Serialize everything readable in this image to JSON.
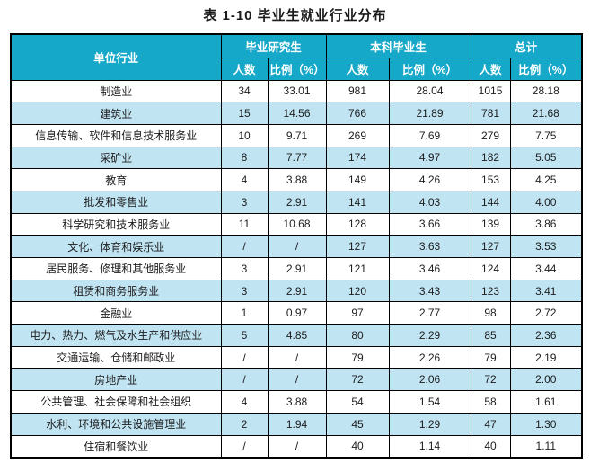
{
  "title": "表 1-10 毕业生就业行业分布",
  "colors": {
    "header_bg": "#16a8c8",
    "header_text": "#ffffff",
    "row_bg": "#ffffff",
    "row_alt_bg": "#c1e4f3",
    "border": "#000000",
    "text": "#1c1c1c"
  },
  "table": {
    "group_headers": [
      "单位行业",
      "毕业研究生",
      "本科毕业生",
      "总计"
    ],
    "sub_headers": [
      "人数",
      "比例（%）",
      "人数",
      "比例（%）",
      "人数",
      "比例（%）"
    ],
    "rows": [
      [
        "制造业",
        "34",
        "33.01",
        "981",
        "28.04",
        "1015",
        "28.18"
      ],
      [
        "建筑业",
        "15",
        "14.56",
        "766",
        "21.89",
        "781",
        "21.68"
      ],
      [
        "信息传输、软件和信息技术服务业",
        "10",
        "9.71",
        "269",
        "7.69",
        "279",
        "7.75"
      ],
      [
        "采矿业",
        "8",
        "7.77",
        "174",
        "4.97",
        "182",
        "5.05"
      ],
      [
        "教育",
        "4",
        "3.88",
        "149",
        "4.26",
        "153",
        "4.25"
      ],
      [
        "批发和零售业",
        "3",
        "2.91",
        "141",
        "4.03",
        "144",
        "4.00"
      ],
      [
        "科学研究和技术服务业",
        "11",
        "10.68",
        "128",
        "3.66",
        "139",
        "3.86"
      ],
      [
        "文化、体育和娱乐业",
        "/",
        "/",
        "127",
        "3.63",
        "127",
        "3.53"
      ],
      [
        "居民服务、修理和其他服务业",
        "3",
        "2.91",
        "121",
        "3.46",
        "124",
        "3.44"
      ],
      [
        "租赁和商务服务业",
        "3",
        "2.91",
        "120",
        "3.43",
        "123",
        "3.41"
      ],
      [
        "金融业",
        "1",
        "0.97",
        "97",
        "2.77",
        "98",
        "2.72"
      ],
      [
        "电力、热力、燃气及水生产和供应业",
        "5",
        "4.85",
        "80",
        "2.29",
        "85",
        "2.36"
      ],
      [
        "交通运输、仓储和邮政业",
        "/",
        "/",
        "79",
        "2.26",
        "79",
        "2.19"
      ],
      [
        "房地产业",
        "/",
        "/",
        "72",
        "2.06",
        "72",
        "2.00"
      ],
      [
        "公共管理、社会保障和社会组织",
        "4",
        "3.88",
        "54",
        "1.54",
        "58",
        "1.61"
      ],
      [
        "水利、环境和公共设施管理业",
        "2",
        "1.94",
        "45",
        "1.29",
        "47",
        "1.30"
      ],
      [
        "住宿和餐饮业",
        "/",
        "/",
        "40",
        "1.14",
        "40",
        "1.11"
      ]
    ]
  },
  "chart_data": {
    "type": "table",
    "title": "表 1-10 毕业生就业行业分布",
    "columns": [
      "单位行业",
      "毕业研究生-人数",
      "毕业研究生-比例（%）",
      "本科毕业生-人数",
      "本科毕业生-比例（%）",
      "总计-人数",
      "总计-比例（%）"
    ],
    "rows": [
      [
        "制造业",
        34,
        33.01,
        981,
        28.04,
        1015,
        28.18
      ],
      [
        "建筑业",
        15,
        14.56,
        766,
        21.89,
        781,
        21.68
      ],
      [
        "信息传输、软件和信息技术服务业",
        10,
        9.71,
        269,
        7.69,
        279,
        7.75
      ],
      [
        "采矿业",
        8,
        7.77,
        174,
        4.97,
        182,
        5.05
      ],
      [
        "教育",
        4,
        3.88,
        149,
        4.26,
        153,
        4.25
      ],
      [
        "批发和零售业",
        3,
        2.91,
        141,
        4.03,
        144,
        4.0
      ],
      [
        "科学研究和技术服务业",
        11,
        10.68,
        128,
        3.66,
        139,
        3.86
      ],
      [
        "文化、体育和娱乐业",
        null,
        null,
        127,
        3.63,
        127,
        3.53
      ],
      [
        "居民服务、修理和其他服务业",
        3,
        2.91,
        121,
        3.46,
        124,
        3.44
      ],
      [
        "租赁和商务服务业",
        3,
        2.91,
        120,
        3.43,
        123,
        3.41
      ],
      [
        "金融业",
        1,
        0.97,
        97,
        2.77,
        98,
        2.72
      ],
      [
        "电力、热力、燃气及水生产和供应业",
        5,
        4.85,
        80,
        2.29,
        85,
        2.36
      ],
      [
        "交通运输、仓储和邮政业",
        null,
        null,
        79,
        2.26,
        79,
        2.19
      ],
      [
        "房地产业",
        null,
        null,
        72,
        2.06,
        72,
        2.0
      ],
      [
        "公共管理、社会保障和社会组织",
        4,
        3.88,
        54,
        1.54,
        58,
        1.61
      ],
      [
        "水利、环境和公共设施管理业",
        2,
        1.94,
        45,
        1.29,
        47,
        1.3
      ],
      [
        "住宿和餐饮业",
        null,
        null,
        40,
        1.14,
        40,
        1.11
      ]
    ]
  }
}
